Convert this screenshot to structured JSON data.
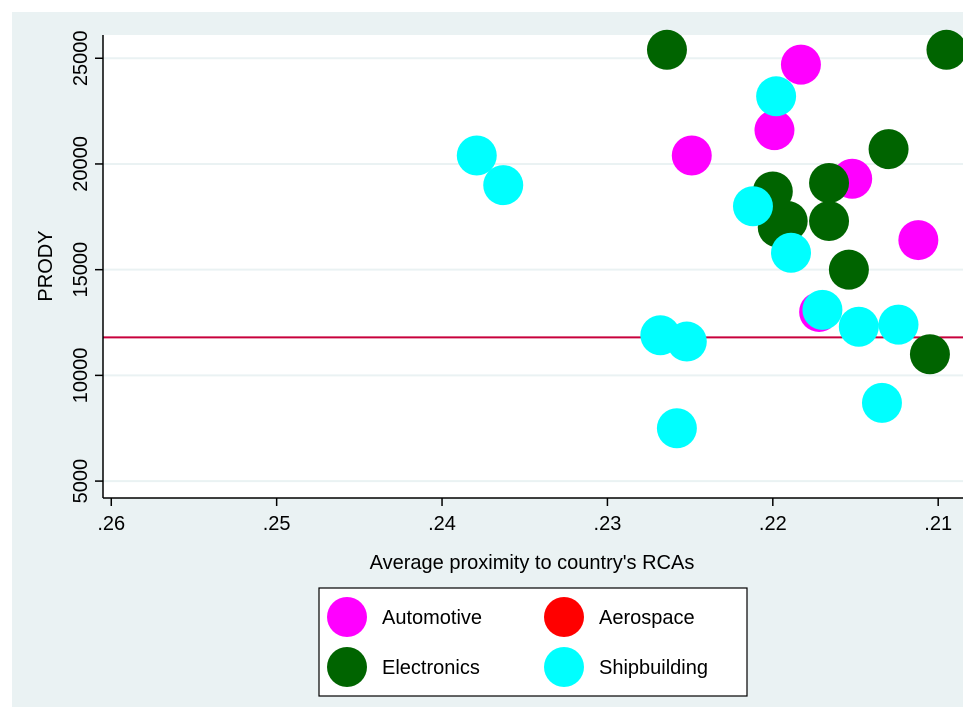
{
  "chart_data": {
    "type": "scatter",
    "title": "",
    "xlabel": "Average proximity to country's RCAs",
    "ylabel": "PRODY",
    "x_reversed": true,
    "xlim": [
      0.2605,
      0.2085
    ],
    "ylim": [
      4200,
      26100
    ],
    "x_ticks": [
      {
        "value": 0.26,
        "label": ".26"
      },
      {
        "value": 0.25,
        "label": ".25"
      },
      {
        "value": 0.24,
        "label": ".24"
      },
      {
        "value": 0.23,
        "label": ".23"
      },
      {
        "value": 0.22,
        "label": ".22"
      },
      {
        "value": 0.21,
        "label": ".21"
      }
    ],
    "y_ticks": [
      {
        "value": 5000,
        "label": "5000"
      },
      {
        "value": 10000,
        "label": "10000"
      },
      {
        "value": 15000,
        "label": "15000"
      },
      {
        "value": 20000,
        "label": "20000"
      },
      {
        "value": 25000,
        "label": "25000"
      }
    ],
    "grid": true,
    "reference_line": {
      "y": 11800,
      "color": "#c8003c"
    },
    "legend_position": "bottom",
    "series": [
      {
        "name": "Automotive",
        "color": "#ff00ff",
        "points": [
          {
            "x": 0.2183,
            "y": 24700
          },
          {
            "x": 0.2199,
            "y": 21600
          },
          {
            "x": 0.2249,
            "y": 20400
          },
          {
            "x": 0.2152,
            "y": 19300
          },
          {
            "x": 0.2112,
            "y": 16400
          },
          {
            "x": 0.2172,
            "y": 13000
          }
        ]
      },
      {
        "name": "Aerospace",
        "color": "#ff0000",
        "points": []
      },
      {
        "name": "Electronics",
        "color": "#006400",
        "points": [
          {
            "x": 0.2264,
            "y": 25400
          },
          {
            "x": 0.2095,
            "y": 25400
          },
          {
            "x": 0.213,
            "y": 20700
          },
          {
            "x": 0.22,
            "y": 18700
          },
          {
            "x": 0.2166,
            "y": 19100
          },
          {
            "x": 0.2191,
            "y": 17300
          },
          {
            "x": 0.2197,
            "y": 17000
          },
          {
            "x": 0.2166,
            "y": 17300
          },
          {
            "x": 0.2154,
            "y": 15000
          },
          {
            "x": 0.2105,
            "y": 11000
          }
        ]
      },
      {
        "name": "Shipbuilding",
        "color": "#00ffff",
        "points": [
          {
            "x": 0.2198,
            "y": 23200
          },
          {
            "x": 0.2379,
            "y": 20400
          },
          {
            "x": 0.2363,
            "y": 19000
          },
          {
            "x": 0.2212,
            "y": 18000
          },
          {
            "x": 0.2189,
            "y": 15800
          },
          {
            "x": 0.217,
            "y": 13100
          },
          {
            "x": 0.2148,
            "y": 12300
          },
          {
            "x": 0.2124,
            "y": 12400
          },
          {
            "x": 0.2268,
            "y": 11900
          },
          {
            "x": 0.2252,
            "y": 11600
          },
          {
            "x": 0.2258,
            "y": 7500
          },
          {
            "x": 0.2134,
            "y": 8700
          }
        ]
      }
    ]
  }
}
